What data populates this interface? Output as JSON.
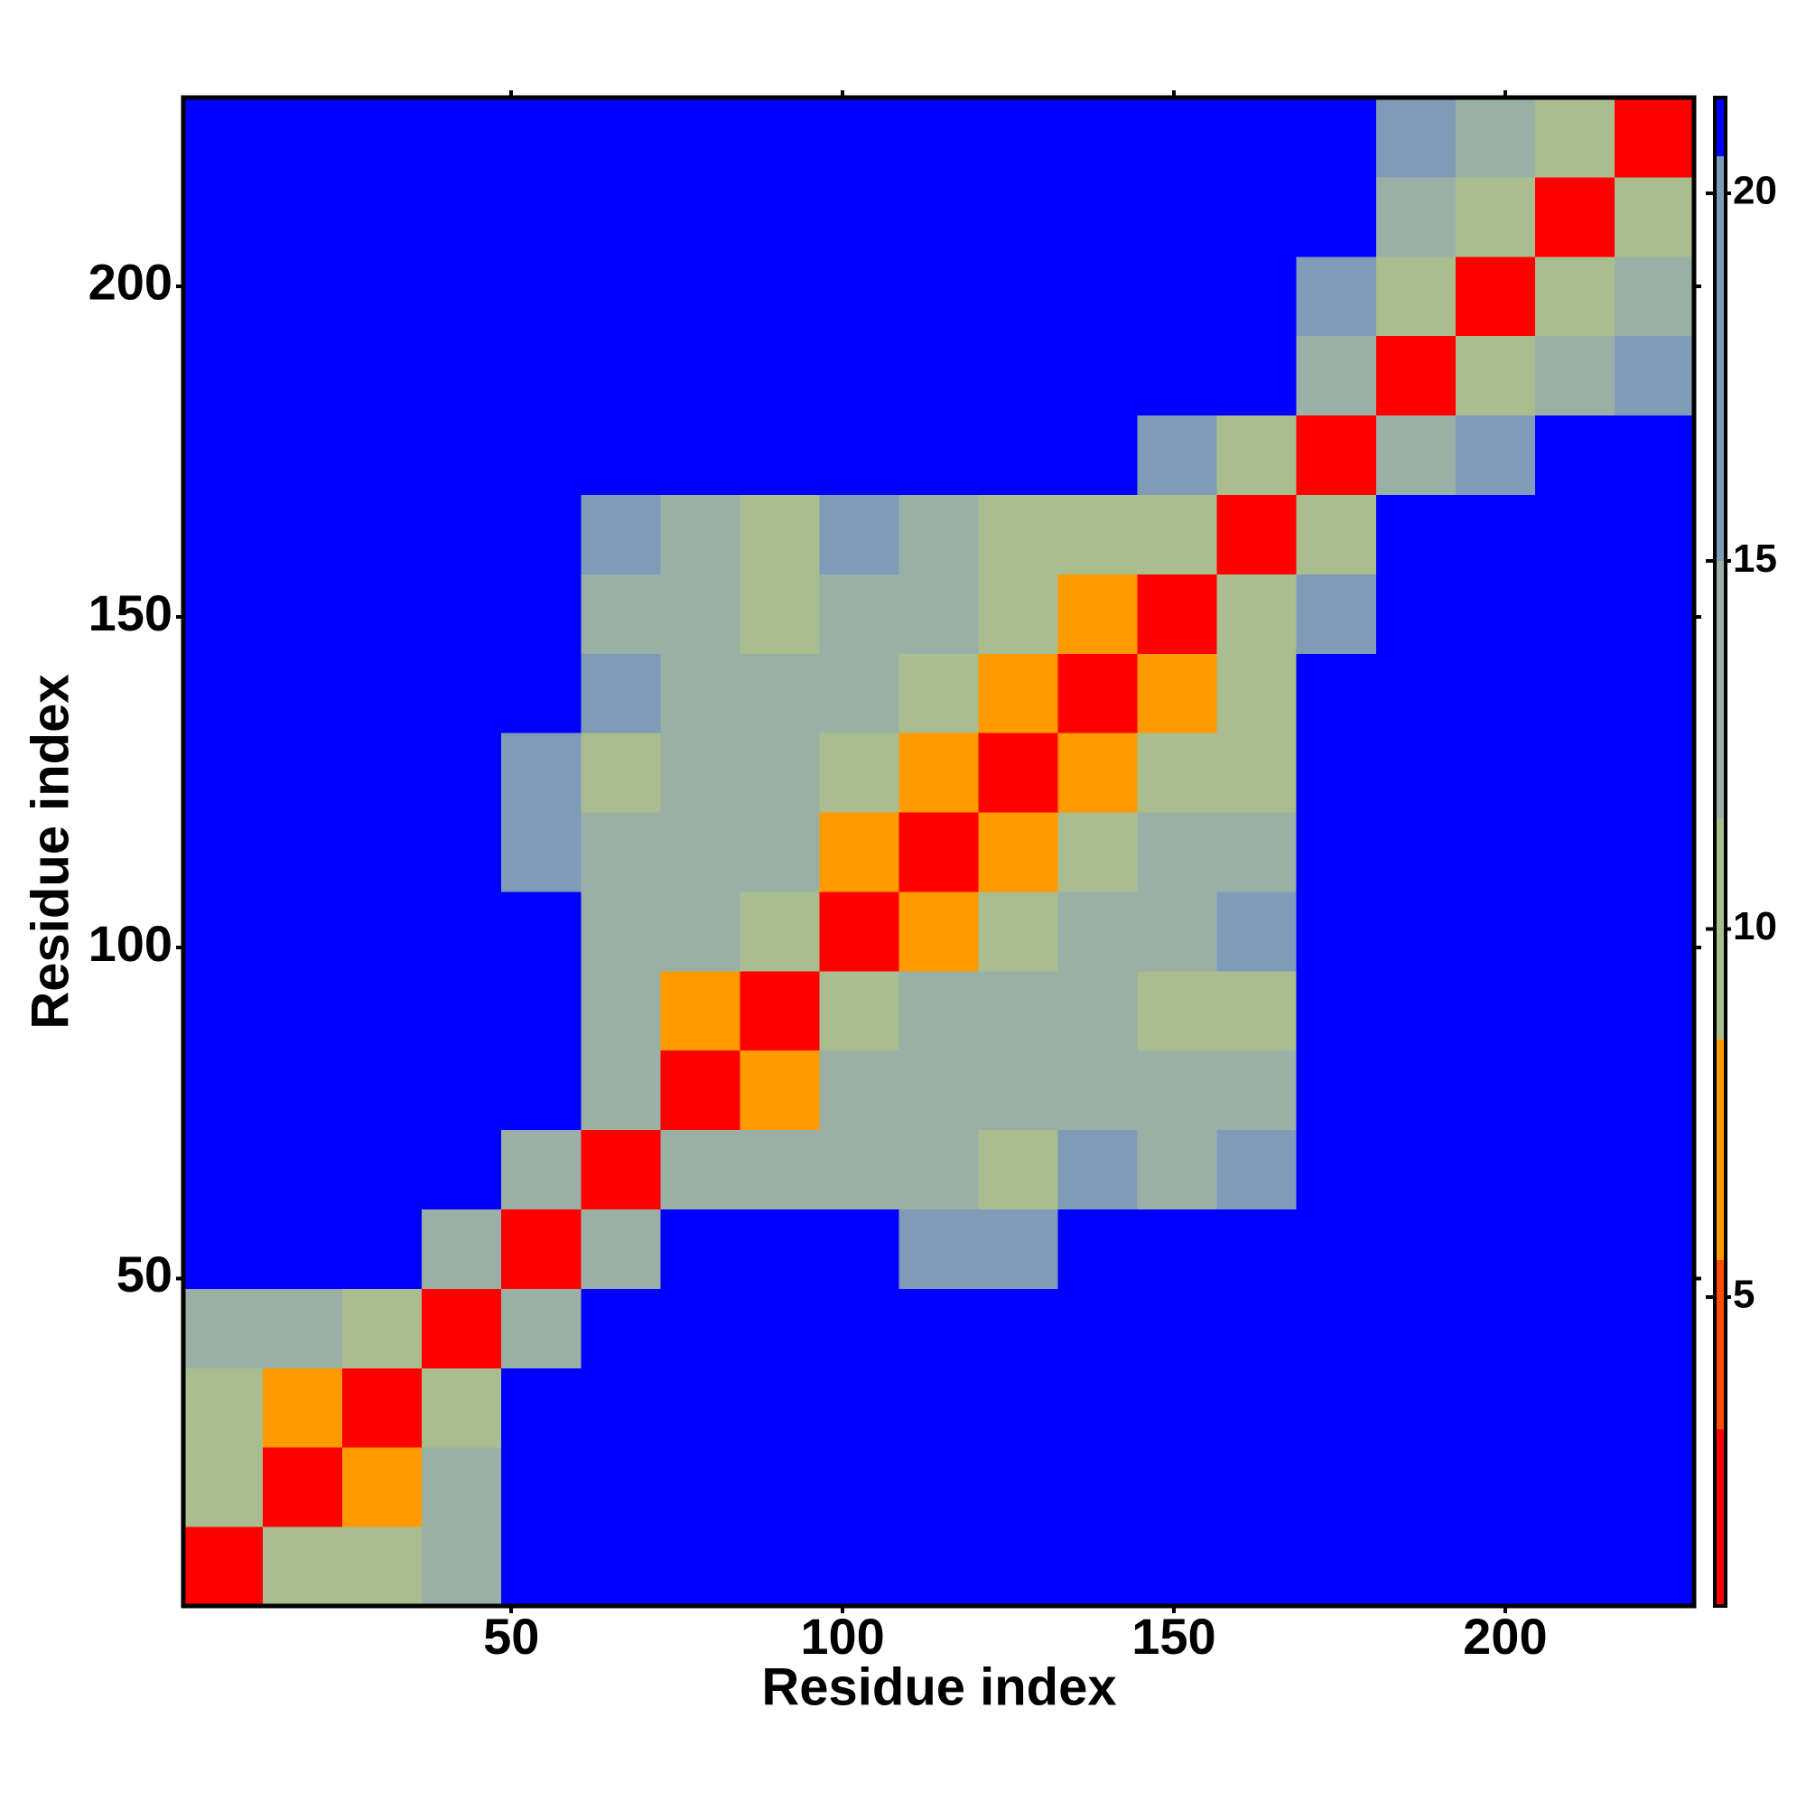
{
  "chart_data": {
    "type": "heatmap",
    "xlabel": "Residue index",
    "ylabel": "Residue index",
    "xlim": [
      0.5,
      228.5
    ],
    "ylim": [
      0.5,
      228.5
    ],
    "xticks": [
      50,
      100,
      150,
      200
    ],
    "yticks": [
      50,
      100,
      150,
      200
    ],
    "x_bins": [
      0.5,
      12.5,
      24.5,
      36.5,
      48.5,
      60.5,
      72.5,
      84.5,
      96.5,
      108.5,
      120.5,
      132.5,
      144.5,
      156.5,
      168.5,
      180.5,
      192.5,
      204.5,
      216.5,
      228.5
    ],
    "y_bins": [
      0.5,
      12.5,
      24.5,
      36.5,
      48.5,
      60.5,
      72.5,
      84.5,
      96.5,
      108.5,
      120.5,
      132.5,
      144.5,
      156.5,
      168.5,
      180.5,
      192.5,
      204.5,
      216.5,
      228.5
    ],
    "z": [
      [
        3,
        9,
        11,
        13,
        21,
        21,
        21,
        21,
        21,
        21,
        21,
        21,
        21,
        21,
        21,
        21,
        21,
        21,
        21
      ],
      [
        9,
        3,
        8,
        12,
        21,
        21,
        21,
        21,
        21,
        21,
        21,
        21,
        21,
        21,
        21,
        21,
        21,
        21,
        21
      ],
      [
        11,
        8,
        3,
        10,
        21,
        21,
        21,
        21,
        21,
        21,
        21,
        21,
        21,
        21,
        21,
        21,
        21,
        21,
        21
      ],
      [
        13,
        12,
        10,
        3,
        12,
        21,
        21,
        21,
        21,
        21,
        21,
        21,
        21,
        21,
        21,
        21,
        21,
        21,
        21
      ],
      [
        21,
        21,
        21,
        12,
        3,
        12,
        21,
        21,
        21,
        17,
        16,
        21,
        21,
        21,
        21,
        21,
        21,
        21,
        21
      ],
      [
        21,
        21,
        21,
        21,
        12,
        3,
        12,
        14,
        13,
        14,
        9,
        15,
        14,
        16,
        21,
        21,
        21,
        21,
        21
      ],
      [
        21,
        21,
        21,
        21,
        21,
        12,
        3,
        7,
        12,
        13,
        12,
        14,
        13,
        13,
        21,
        21,
        21,
        21,
        21
      ],
      [
        21,
        21,
        21,
        21,
        21,
        14,
        7,
        3,
        10,
        12,
        12,
        13,
        10,
        9,
        21,
        21,
        21,
        21,
        21
      ],
      [
        21,
        21,
        21,
        21,
        21,
        13,
        12,
        10,
        3,
        6,
        11,
        12,
        12,
        15,
        21,
        21,
        21,
        21,
        21
      ],
      [
        21,
        21,
        21,
        21,
        17,
        14,
        13,
        12,
        6,
        3,
        6,
        10,
        12,
        13,
        21,
        21,
        21,
        21,
        21
      ],
      [
        21,
        21,
        21,
        21,
        16,
        9,
        12,
        12,
        11,
        6,
        3,
        8,
        11,
        9,
        21,
        21,
        21,
        21,
        21
      ],
      [
        21,
        21,
        21,
        21,
        21,
        15,
        14,
        13,
        12,
        10,
        8,
        3,
        7,
        11,
        21,
        21,
        21,
        21,
        21
      ],
      [
        21,
        21,
        21,
        21,
        21,
        14,
        13,
        10,
        12,
        12,
        11,
        7,
        3,
        9,
        16,
        21,
        21,
        21,
        21
      ],
      [
        21,
        21,
        21,
        21,
        21,
        16,
        13,
        9,
        15,
        13,
        9,
        11,
        9,
        3,
        11,
        21,
        21,
        21,
        21
      ],
      [
        21,
        21,
        21,
        21,
        21,
        21,
        21,
        21,
        21,
        21,
        21,
        21,
        16,
        11,
        3,
        12,
        16,
        21,
        21
      ],
      [
        21,
        21,
        21,
        21,
        21,
        21,
        21,
        21,
        21,
        21,
        21,
        21,
        21,
        21,
        12,
        3,
        11,
        13,
        18
      ],
      [
        21,
        21,
        21,
        21,
        21,
        21,
        21,
        21,
        21,
        21,
        21,
        21,
        21,
        21,
        16,
        11,
        3,
        9,
        13
      ],
      [
        21,
        21,
        21,
        21,
        21,
        21,
        21,
        21,
        21,
        21,
        21,
        21,
        21,
        21,
        21,
        13,
        9,
        3,
        10
      ],
      [
        21,
        21,
        21,
        21,
        21,
        21,
        21,
        21,
        21,
        21,
        21,
        21,
        21,
        21,
        21,
        18,
        13,
        10,
        3
      ]
    ],
    "color_bounds": [
      0.8,
      3.2,
      5.5,
      8.5,
      11.5,
      15,
      20.5,
      21.3
    ],
    "colors": [
      "#ff0000",
      "#ff4a00",
      "#ff9a00",
      "#a9bd8e",
      "#9ab0a6",
      "#7f9bb8",
      "#0000ff"
    ],
    "colorbar_ticks": [
      5,
      10,
      15,
      20
    ]
  }
}
